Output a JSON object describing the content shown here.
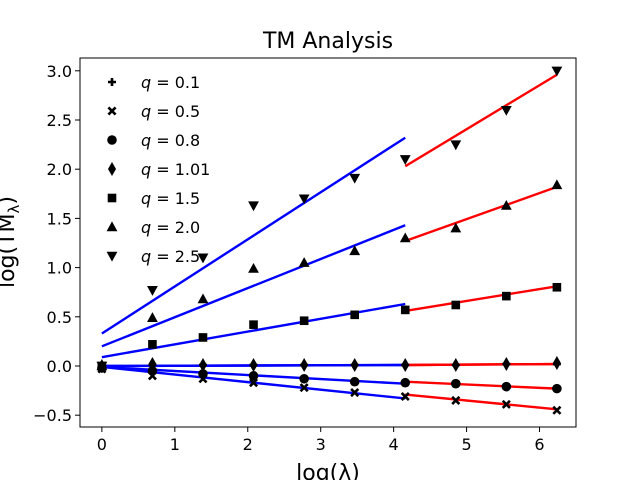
{
  "chart_data": {
    "type": "scatter",
    "title": "TM Analysis",
    "xlabel": "log(λ)",
    "ylabel": "log(TM_λ)",
    "xlim": [
      -0.3,
      6.5
    ],
    "ylim": [
      -0.62,
      3.13
    ],
    "xticks": [
      "0",
      "1",
      "2",
      "3",
      "4",
      "5",
      "6"
    ],
    "yticks": [
      "−0.5",
      "0.0",
      "0.5",
      "1.0",
      "1.5",
      "2.0",
      "2.5",
      "3.0"
    ],
    "grid": false,
    "legend_position": "upper-left",
    "x": [
      0,
      0.693,
      1.386,
      2.079,
      2.773,
      3.466,
      4.159,
      4.852,
      5.545,
      6.238
    ],
    "series": [
      {
        "name": "q = 0.1",
        "marker": "plus",
        "values": [
          0.0,
          0.01,
          0.01,
          0.01,
          0.01,
          0.01,
          0.01,
          0.01,
          0.02,
          0.02
        ]
      },
      {
        "name": "q = 0.5",
        "marker": "x",
        "values": [
          -0.03,
          -0.1,
          -0.13,
          -0.17,
          -0.22,
          -0.27,
          -0.31,
          -0.35,
          -0.39,
          -0.45
        ]
      },
      {
        "name": "q = 0.8",
        "marker": "circle",
        "values": [
          -0.02,
          -0.05,
          -0.08,
          -0.1,
          -0.13,
          -0.16,
          -0.17,
          -0.18,
          -0.21,
          -0.23
        ]
      },
      {
        "name": "q = 1.01",
        "marker": "diamond",
        "values": [
          0.0,
          0.02,
          0.01,
          0.01,
          0.01,
          0.01,
          0.01,
          0.01,
          0.02,
          0.03
        ]
      },
      {
        "name": "q = 1.5",
        "marker": "square",
        "values": [
          0.0,
          0.22,
          0.29,
          0.42,
          0.46,
          0.52,
          0.57,
          0.62,
          0.71,
          0.8
        ]
      },
      {
        "name": "q = 2.0",
        "marker": "triangle-up",
        "values": [
          0.0,
          0.49,
          0.68,
          0.99,
          1.05,
          1.17,
          1.3,
          1.4,
          1.63,
          1.84
        ]
      },
      {
        "name": "q = 2.5",
        "marker": "triangle-down",
        "values": [
          0.0,
          0.77,
          1.1,
          1.63,
          1.7,
          1.91,
          2.1,
          2.25,
          2.6,
          3.0
        ]
      }
    ],
    "fits": [
      {
        "series": "q = 0.1",
        "color": "#0000ff",
        "x0": 0,
        "y0": 0.0,
        "x1": 4.159,
        "y1": 0.01
      },
      {
        "series": "q = 0.1",
        "color": "#ff0000",
        "x0": 4.159,
        "y0": 0.01,
        "x1": 6.238,
        "y1": 0.02
      },
      {
        "series": "q = 0.5",
        "color": "#0000ff",
        "x0": 0,
        "y0": -0.01,
        "x1": 4.159,
        "y1": -0.33
      },
      {
        "series": "q = 0.5",
        "color": "#ff0000",
        "x0": 4.159,
        "y0": -0.29,
        "x1": 6.238,
        "y1": -0.44
      },
      {
        "series": "q = 0.8",
        "color": "#0000ff",
        "x0": 0,
        "y0": -0.01,
        "x1": 4.159,
        "y1": -0.18
      },
      {
        "series": "q = 0.8",
        "color": "#ff0000",
        "x0": 4.159,
        "y0": -0.16,
        "x1": 6.238,
        "y1": -0.23
      },
      {
        "series": "q = 1.01",
        "color": "#0000ff",
        "x0": 0,
        "y0": 0.0,
        "x1": 4.159,
        "y1": 0.01
      },
      {
        "series": "q = 1.01",
        "color": "#ff0000",
        "x0": 4.159,
        "y0": 0.01,
        "x1": 6.238,
        "y1": 0.02
      },
      {
        "series": "q = 1.5",
        "color": "#0000ff",
        "x0": 0,
        "y0": 0.09,
        "x1": 4.159,
        "y1": 0.63
      },
      {
        "series": "q = 1.5",
        "color": "#ff0000",
        "x0": 4.159,
        "y0": 0.56,
        "x1": 6.238,
        "y1": 0.81
      },
      {
        "series": "q = 2.0",
        "color": "#0000ff",
        "x0": 0,
        "y0": 0.2,
        "x1": 4.159,
        "y1": 1.43
      },
      {
        "series": "q = 2.0",
        "color": "#ff0000",
        "x0": 4.159,
        "y0": 1.27,
        "x1": 6.238,
        "y1": 1.82
      },
      {
        "series": "q = 2.5",
        "color": "#0000ff",
        "x0": 0,
        "y0": 0.33,
        "x1": 4.159,
        "y1": 2.32
      },
      {
        "series": "q = 2.5",
        "color": "#ff0000",
        "x0": 4.159,
        "y0": 2.03,
        "x1": 6.238,
        "y1": 2.96
      }
    ]
  }
}
